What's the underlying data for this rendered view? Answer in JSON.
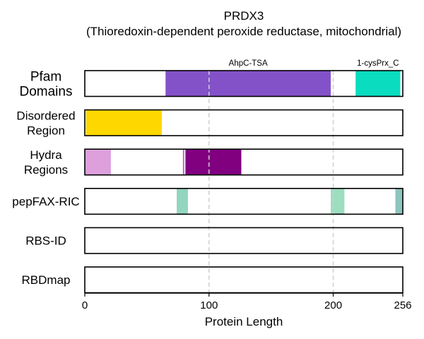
{
  "chart_data": {
    "type": "bar",
    "title": "PRDX3",
    "subtitle": "(Thioredoxin-dependent peroxide reductase, mitochondrial)",
    "xlabel": "Protein Length",
    "xlim": [
      0,
      256
    ],
    "xticks": [
      0,
      100,
      200,
      256
    ],
    "vlines": [
      100,
      200
    ],
    "tracks": [
      {
        "label_lines": [
          "Pfam",
          "Domains"
        ],
        "segments": [
          {
            "start": 65,
            "end": 198,
            "color": "#8452C8",
            "name": "AhpC-TSA"
          },
          {
            "start": 218,
            "end": 254,
            "color": "#0ADCC0",
            "name": "1-cysPrx_C"
          }
        ]
      },
      {
        "label_lines": [
          "Disordered",
          "Region"
        ],
        "segments": [
          {
            "start": 1,
            "end": 62,
            "color": "#FFD700"
          }
        ]
      },
      {
        "label_lines": [
          "Hydra",
          "Regions"
        ],
        "segments": [
          {
            "start": 0,
            "end": 21,
            "color": "#DDA0DD"
          },
          {
            "start": 79,
            "end": 80,
            "color": "#BA55D3"
          },
          {
            "start": 81,
            "end": 126,
            "color": "#800080"
          }
        ]
      },
      {
        "label_lines": [
          "pepFAX-RIC"
        ],
        "segments": [
          {
            "start": 74,
            "end": 83,
            "color": "#93D5BF"
          },
          {
            "start": 198,
            "end": 209,
            "color": "#9DDDC0"
          },
          {
            "start": 250,
            "end": 256,
            "color": "#8CC5BD"
          }
        ]
      },
      {
        "label_lines": [
          "RBS-ID"
        ],
        "segments": []
      },
      {
        "label_lines": [
          "RBDmap"
        ],
        "segments": []
      }
    ]
  }
}
